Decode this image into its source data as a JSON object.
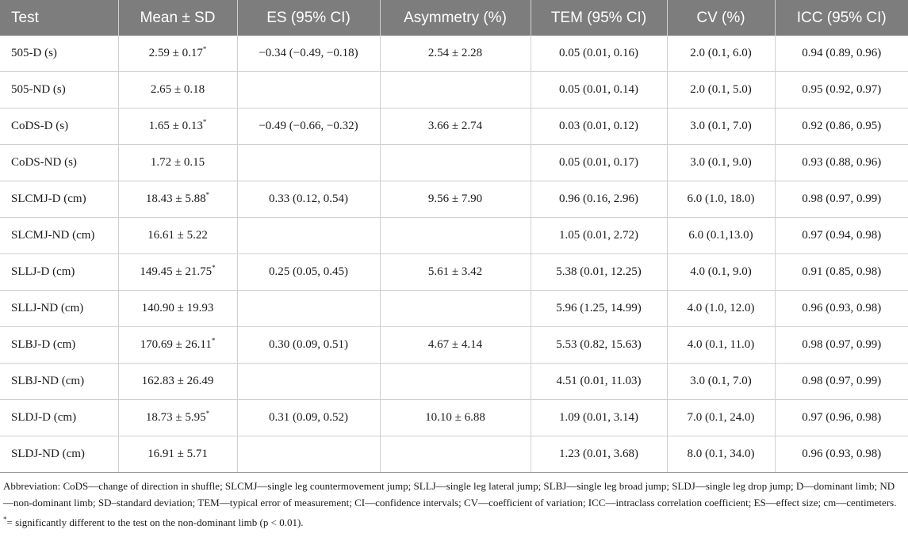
{
  "headers": [
    "Test",
    "Mean ± SD",
    "ES (95% CI)",
    "Asymmetry (%)",
    "TEM (95% CI)",
    "CV (%)",
    "ICC (95% CI)"
  ],
  "rows": [
    {
      "test": "505-D (s)",
      "mean": "2.59 ± 0.17",
      "sig": "*",
      "es": "−0.34 (−0.49, −0.18)",
      "asym": "2.54 ± 2.28",
      "tem": "0.05 (0.01, 0.16)",
      "cv": "2.0 (0.1, 6.0)",
      "icc": "0.94 (0.89, 0.96)"
    },
    {
      "test": "505-ND (s)",
      "mean": "2.65 ± 0.18",
      "sig": "",
      "es": "",
      "asym": "",
      "tem": "0.05 (0.01, 0.14)",
      "cv": "2.0 (0.1, 5.0)",
      "icc": "0.95 (0.92, 0.97)"
    },
    {
      "test": "CoDS-D (s)",
      "mean": "1.65 ± 0.13",
      "sig": "*",
      "es": "−0.49 (−0.66, −0.32)",
      "asym": "3.66 ± 2.74",
      "tem": "0.03 (0.01, 0.12)",
      "cv": "3.0 (0.1, 7.0)",
      "icc": "0.92 (0.86, 0.95)"
    },
    {
      "test": "CoDS-ND (s)",
      "mean": "1.72 ± 0.15",
      "sig": "",
      "es": "",
      "asym": "",
      "tem": "0.05 (0.01, 0.17)",
      "cv": "3.0 (0.1, 9.0)",
      "icc": "0.93 (0.88, 0.96)"
    },
    {
      "test": "SLCMJ-D (cm)",
      "mean": "18.43 ± 5.88",
      "sig": "*",
      "es": "0.33 (0.12, 0.54)",
      "asym": "9.56 ± 7.90",
      "tem": "0.96 (0.16, 2.96)",
      "cv": "6.0 (1.0, 18.0)",
      "icc": "0.98 (0.97, 0.99)"
    },
    {
      "test": "SLCMJ-ND (cm)",
      "mean": "16.61 ± 5.22",
      "sig": "",
      "es": "",
      "asym": "",
      "tem": "1.05 (0.01, 2.72)",
      "cv": "6.0 (0.1,13.0)",
      "icc": "0.97 (0.94, 0.98)"
    },
    {
      "test": "SLLJ-D (cm)",
      "mean": "149.45 ± 21.75",
      "sig": "*",
      "es": "0.25 (0.05, 0.45)",
      "asym": "5.61 ± 3.42",
      "tem": "5.38 (0.01, 12.25)",
      "cv": "4.0 (0.1, 9.0)",
      "icc": "0.91 (0.85, 0.98)"
    },
    {
      "test": "SLLJ-ND (cm)",
      "mean": "140.90 ± 19.93",
      "sig": "",
      "es": "",
      "asym": "",
      "tem": "5.96 (1.25, 14.99)",
      "cv": "4.0 (1.0, 12.0)",
      "icc": "0.96 (0.93, 0.98)"
    },
    {
      "test": "SLBJ-D (cm)",
      "mean": "170.69 ± 26.11",
      "sig": "*",
      "es": "0.30 (0.09, 0.51)",
      "asym": "4.67 ± 4.14",
      "tem": "5.53 (0.82, 15.63)",
      "cv": "4.0 (0.1, 11.0)",
      "icc": "0.98 (0.97, 0.99)"
    },
    {
      "test": "SLBJ-ND (cm)",
      "mean": "162.83 ± 26.49",
      "sig": "",
      "es": "",
      "asym": "",
      "tem": "4.51 (0.01, 11.03)",
      "cv": "3.0 (0.1, 7.0)",
      "icc": "0.98 (0.97, 0.99)"
    },
    {
      "test": "SLDJ-D (cm)",
      "mean": "18.73 ± 5.95",
      "sig": "*",
      "es": "0.31 (0.09, 0.52)",
      "asym": "10.10 ± 6.88",
      "tem": "1.09 (0.01, 3.14)",
      "cv": "7.0 (0.1, 24.0)",
      "icc": "0.97 (0.96, 0.98)"
    },
    {
      "test": "SLDJ-ND (cm)",
      "mean": "16.91 ± 5.71",
      "sig": "",
      "es": "",
      "asym": "",
      "tem": "1.23 (0.01, 3.68)",
      "cv": "8.0 (0.1, 34.0)",
      "icc": "0.96 (0.93, 0.98)"
    }
  ],
  "footnotes": {
    "abbreviation": "Abbreviation: CoDS—change of direction in shuffle; SLCMJ—single leg countermovement jump; SLLJ—single leg lateral jump; SLBJ—single leg broad jump; SLDJ—single leg drop jump; D—dominant limb; ND—non-dominant limb; SD–standard deviation; TEM—typical error of measurement; CI—confidence intervals; CV—coefficient of variation; ICC—intraclass correlation coefficient; ES—effect size; cm—centimeters.",
    "sig_marker": "*",
    "sig_text": "= significantly different to the test on the non-dominant limb (p < 0.01)."
  }
}
